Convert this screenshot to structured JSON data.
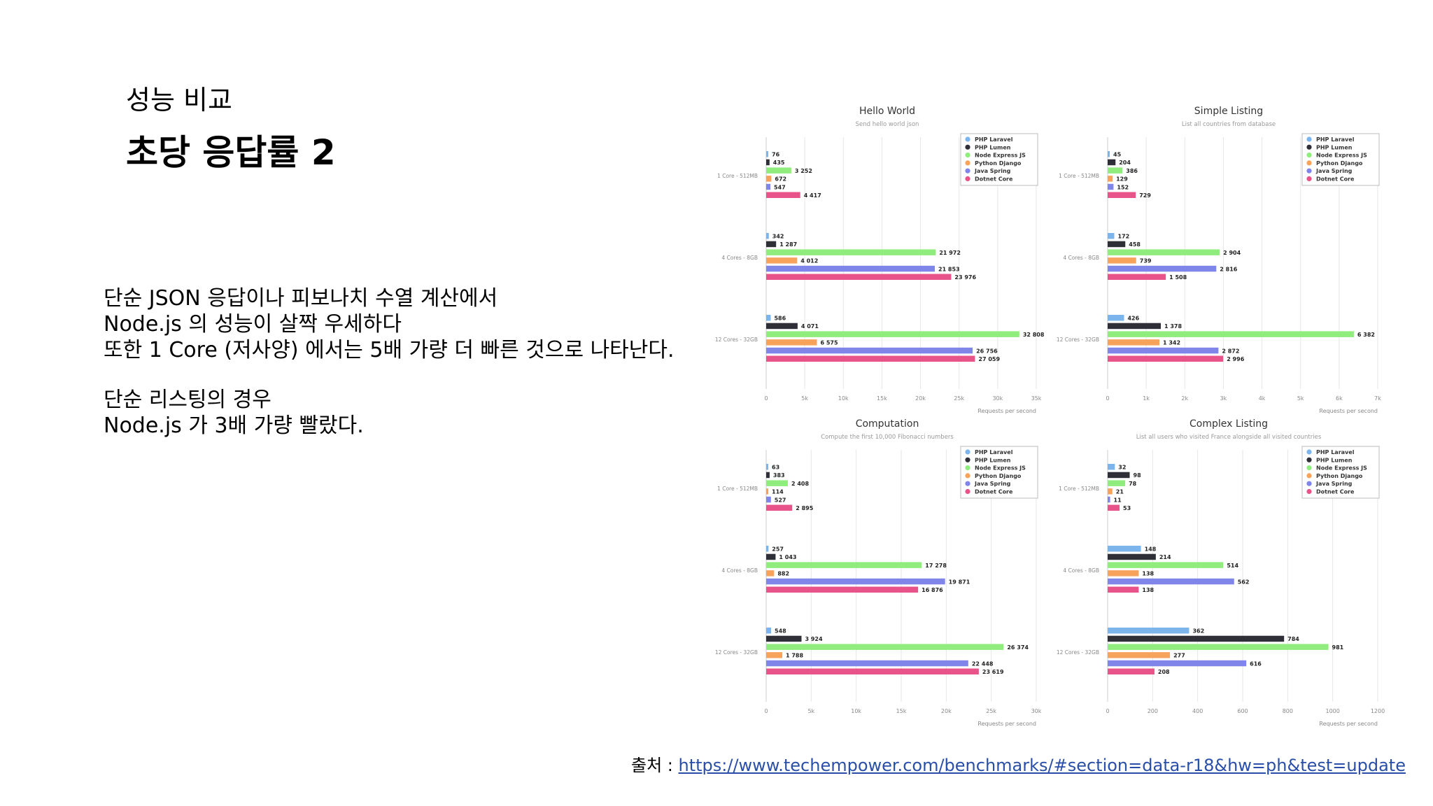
{
  "slide": {
    "subtitle": "성능 비교",
    "title": "초당 응답률 2",
    "body_lines": [
      "단순 JSON 응답이나 피보나치 수열 계산에서",
      "Node.js 의 성능이 살짝 우세하다",
      "또한 1 Core (저사양) 에서는 5배 가량 더 빠른 것으로 나타난다.",
      "",
      "단순 리스팅의 경우",
      "Node.js 가 3배 가량 빨랐다."
    ],
    "source_prefix": "출처 : ",
    "source_link": "https://www.techempower.com/benchmarks/#section=data-r18&hw=ph&test=update"
  },
  "colors": {
    "PHP Laravel": "#7cb5ec",
    "PHP Lumen": "#2f2f38",
    "Node Express JS": "#90ed7d",
    "Python Django": "#f7a35c",
    "Java Spring": "#8085e9",
    "Dotnet Core": "#e8538a"
  },
  "chart_data": [
    {
      "type": "bar",
      "orientation": "horizontal",
      "title": "Hello World",
      "subtitle": "Send hello world json",
      "categories": [
        "1 Core - 512MB",
        "4 Cores - 8GB",
        "12 Cores - 32GB"
      ],
      "xlabel": "Requests per second",
      "xlim": [
        0,
        35000
      ],
      "ticks": [
        "0",
        "5k",
        "10k",
        "15k",
        "20k",
        "25k",
        "30k",
        "35k"
      ],
      "legend": "top-right",
      "series": [
        {
          "name": "PHP Laravel",
          "values": [
            76,
            342,
            586
          ],
          "labels": [
            "76",
            "342",
            "586"
          ]
        },
        {
          "name": "PHP Lumen",
          "values": [
            435,
            1287,
            4071
          ],
          "labels": [
            "435",
            "1 287",
            "4 071"
          ]
        },
        {
          "name": "Node Express JS",
          "values": [
            3252,
            21972,
            32808
          ],
          "labels": [
            "3 252",
            "21 972",
            "32 808"
          ]
        },
        {
          "name": "Python Django",
          "values": [
            672,
            4012,
            6575
          ],
          "labels": [
            "672",
            "4 012",
            "6 575"
          ]
        },
        {
          "name": "Java Spring",
          "values": [
            547,
            21853,
            26756
          ],
          "labels": [
            "547",
            "21 853",
            "26 756"
          ]
        },
        {
          "name": "Dotnet Core",
          "values": [
            4417,
            23976,
            27059
          ],
          "labels": [
            "4 417",
            "23 976",
            "27 059"
          ]
        }
      ]
    },
    {
      "type": "bar",
      "orientation": "horizontal",
      "title": "Simple Listing",
      "subtitle": "List all countries from database",
      "categories": [
        "1 Core - 512MB",
        "4 Cores - 8GB",
        "12 Cores - 32GB"
      ],
      "xlabel": "Requests per second",
      "xlim": [
        0,
        7000
      ],
      "ticks": [
        "0",
        "1k",
        "2k",
        "3k",
        "4k",
        "5k",
        "6k",
        "7k"
      ],
      "legend": "top-right",
      "series": [
        {
          "name": "PHP Laravel",
          "values": [
            45,
            172,
            426
          ],
          "labels": [
            "45",
            "172",
            "426"
          ]
        },
        {
          "name": "PHP Lumen",
          "values": [
            204,
            458,
            1378
          ],
          "labels": [
            "204",
            "458",
            "1 378"
          ]
        },
        {
          "name": "Node Express JS",
          "values": [
            386,
            2904,
            6382
          ],
          "labels": [
            "386",
            "2 904",
            "6 382"
          ]
        },
        {
          "name": "Python Django",
          "values": [
            129,
            739,
            1342
          ],
          "labels": [
            "129",
            "739",
            "1 342"
          ]
        },
        {
          "name": "Java Spring",
          "values": [
            152,
            2816,
            2872
          ],
          "labels": [
            "152",
            "2 816",
            "2 872"
          ]
        },
        {
          "name": "Dotnet Core",
          "values": [
            729,
            1508,
            2996
          ],
          "labels": [
            "729",
            "1 508",
            "2 996"
          ]
        }
      ]
    },
    {
      "type": "bar",
      "orientation": "horizontal",
      "title": "Computation",
      "subtitle": "Compute the first 10,000 Fibonacci numbers",
      "categories": [
        "1 Core - 512MB",
        "4 Cores - 8GB",
        "12 Cores - 32GB"
      ],
      "xlabel": "Requests per second",
      "xlim": [
        0,
        30000
      ],
      "ticks": [
        "0",
        "5k",
        "10k",
        "15k",
        "20k",
        "25k",
        "30k"
      ],
      "legend": "top-right",
      "series": [
        {
          "name": "PHP Laravel",
          "values": [
            63,
            257,
            548
          ],
          "labels": [
            "63",
            "257",
            "548"
          ]
        },
        {
          "name": "PHP Lumen",
          "values": [
            383,
            1043,
            3924
          ],
          "labels": [
            "383",
            "1 043",
            "3 924"
          ]
        },
        {
          "name": "Node Express JS",
          "values": [
            2408,
            17278,
            26374
          ],
          "labels": [
            "2 408",
            "17 278",
            "26 374"
          ]
        },
        {
          "name": "Python Django",
          "values": [
            114,
            882,
            1788
          ],
          "labels": [
            "114",
            "882",
            "1 788"
          ]
        },
        {
          "name": "Java Spring",
          "values": [
            527,
            19871,
            22448
          ],
          "labels": [
            "527",
            "19 871",
            "22 448"
          ]
        },
        {
          "name": "Dotnet Core",
          "values": [
            2895,
            16876,
            23619
          ],
          "labels": [
            "2 895",
            "16 876",
            "23 619"
          ]
        }
      ]
    },
    {
      "type": "bar",
      "orientation": "horizontal",
      "title": "Complex Listing",
      "subtitle": "List all users who visited France alongside all visited countries",
      "categories": [
        "1 Core - 512MB",
        "4 Cores - 8GB",
        "12 Cores - 32GB"
      ],
      "xlabel": "Requests per second",
      "xlim": [
        0,
        1200
      ],
      "ticks": [
        "0",
        "200",
        "400",
        "600",
        "800",
        "1000",
        "1200"
      ],
      "legend": "top-right",
      "series": [
        {
          "name": "PHP Laravel",
          "values": [
            32,
            148,
            362
          ],
          "labels": [
            "32",
            "148",
            "362"
          ]
        },
        {
          "name": "PHP Lumen",
          "values": [
            98,
            214,
            784
          ],
          "labels": [
            "98",
            "214",
            "784"
          ]
        },
        {
          "name": "Node Express JS",
          "values": [
            78,
            514,
            981
          ],
          "labels": [
            "78",
            "514",
            "981"
          ]
        },
        {
          "name": "Python Django",
          "values": [
            21,
            138,
            277
          ],
          "labels": [
            "21",
            "138",
            "277"
          ]
        },
        {
          "name": "Java Spring",
          "values": [
            11,
            562,
            616
          ],
          "labels": [
            "11",
            "562",
            "616"
          ]
        },
        {
          "name": "Dotnet Core",
          "values": [
            53,
            138,
            208
          ],
          "labels": [
            "53",
            "138",
            "208"
          ]
        }
      ]
    }
  ]
}
